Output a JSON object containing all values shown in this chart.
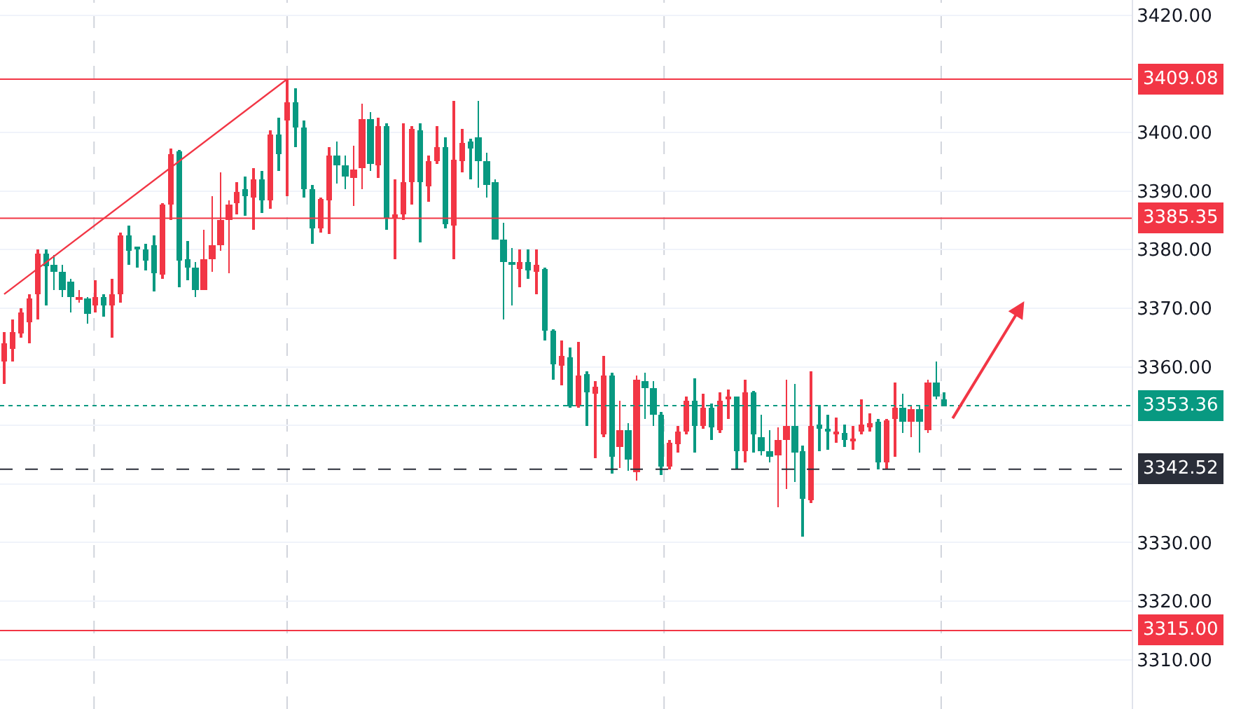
{
  "chart_data": {
    "type": "candlestick",
    "categories": [
      null,
      null,
      null,
      null,
      null,
      null,
      null,
      null,
      null,
      null,
      null,
      null,
      null,
      null,
      null,
      null,
      null,
      null,
      null,
      null,
      null,
      null,
      null,
      null,
      null,
      null,
      null,
      null,
      null,
      null,
      null,
      null,
      null,
      null,
      null,
      null,
      null,
      null,
      null,
      null,
      null,
      null,
      null,
      null,
      null,
      null,
      null,
      null,
      null,
      null,
      null,
      null,
      null,
      null,
      null,
      null,
      null,
      null,
      null,
      null,
      null,
      null,
      null,
      null,
      null,
      null,
      null,
      null,
      null,
      null,
      null,
      null,
      null,
      null,
      null,
      null,
      null,
      null,
      null,
      null,
      null,
      null,
      null,
      null,
      null,
      null,
      null,
      null,
      null,
      null,
      null,
      null,
      null,
      null,
      null,
      null,
      null,
      null,
      null,
      null,
      null,
      null,
      null,
      null,
      null,
      null,
      null,
      null,
      null,
      null,
      null,
      null,
      null,
      null,
      null,
      null,
      null,
      null,
      null,
      null,
      null,
      null,
      null,
      null,
      null,
      null,
      null,
      null,
      null,
      null,
      null,
      null,
      null,
      null,
      null,
      null
    ],
    "ohlc": [
      [
        3361,
        3366,
        3357,
        3364
      ],
      [
        3363,
        3368,
        3361,
        3366
      ],
      [
        3365.7,
        3370,
        3365,
        3369.3
      ],
      [
        3367.6,
        3372.5,
        3364,
        3371.7
      ],
      [
        3372.4,
        3380,
        3368,
        3379.2
      ],
      [
        3379.4,
        3380.1,
        3370.5,
        3377.2
      ],
      [
        3377.5,
        3379,
        3373,
        3376.2
      ],
      [
        3376.2,
        3377.5,
        3371.8,
        3373.2
      ],
      [
        3374.6,
        3375,
        3369.3,
        3371.8
      ],
      [
        3371.5,
        3373,
        3371,
        3372
      ],
      [
        3371.7,
        3372,
        3367.3,
        3369.1
      ],
      [
        3370.5,
        3374.8,
        3369.3,
        3372
      ],
      [
        3372,
        3372.5,
        3368.5,
        3370.5
      ],
      [
        3370.5,
        3375,
        3365,
        3372.4
      ],
      [
        3372.4,
        3383,
        3371,
        3382.5
      ],
      [
        3382.5,
        3384.2,
        3377.3,
        3379.7
      ],
      [
        3380.5,
        3380.6,
        3377,
        3380.1
      ],
      [
        3380.1,
        3381,
        3376.5,
        3378.1
      ],
      [
        3380.7,
        3382.5,
        3372.8,
        3376
      ],
      [
        3375.7,
        3388,
        3375,
        3387.7
      ],
      [
        3387.6,
        3397.2,
        3385,
        3396.3
      ],
      [
        3396.7,
        3397,
        3373.5,
        3378.2
      ],
      [
        3378.4,
        3381.4,
        3374.8,
        3376.9
      ],
      [
        3376.9,
        3378,
        3371.8,
        3373.2
      ],
      [
        3373.2,
        3383.5,
        3373,
        3378.4
      ],
      [
        3378.4,
        3389.2,
        3376.1,
        3380.8
      ],
      [
        3380.8,
        3393.1,
        3379.7,
        3385
      ],
      [
        3385,
        3388.5,
        3376,
        3387.7
      ],
      [
        3387.9,
        3391.5,
        3386,
        3389.9
      ],
      [
        3390.3,
        3392.5,
        3385.7,
        3389.1
      ],
      [
        3388.9,
        3394,
        3383.5,
        3392.1
      ],
      [
        3392.1,
        3393.4,
        3386.2,
        3388.3
      ],
      [
        3388.3,
        3400.3,
        3387,
        3399.7
      ],
      [
        3399.7,
        3402.5,
        3393.5,
        3396.4
      ],
      [
        3402.1,
        3409.08,
        3389.2,
        3405.2
      ],
      [
        3405.2,
        3407.5,
        3397.5,
        3400.8
      ],
      [
        3400.8,
        3402.1,
        3389,
        3390.2
      ],
      [
        3390.2,
        3391,
        3380.9,
        3383.7
      ],
      [
        3383.6,
        3389,
        3383,
        3388.6
      ],
      [
        3388.4,
        3397.5,
        3382.6,
        3396
      ],
      [
        3396,
        3398.5,
        3391.3,
        3394.4
      ],
      [
        3394.4,
        3396,
        3390.2,
        3392.4
      ],
      [
        3392.2,
        3397.8,
        3387.4,
        3393.6
      ],
      [
        3393.8,
        3405,
        3390.3,
        3402.3
      ],
      [
        3402.3,
        3403.5,
        3393.5,
        3394.7
      ],
      [
        3394.4,
        3402.5,
        3392.3,
        3401
      ],
      [
        3401,
        3401.5,
        3383.3,
        3385.4
      ],
      [
        3385.4,
        3392,
        3378.4,
        3386
      ],
      [
        3386.1,
        3401.5,
        3385,
        3391.6
      ],
      [
        3391.6,
        3401,
        3387.6,
        3400.5
      ],
      [
        3400.3,
        3401.5,
        3381.3,
        3391.6
      ],
      [
        3390.9,
        3396,
        3388.2,
        3395.1
      ],
      [
        3395.1,
        3401.1,
        3394.7,
        3397.6
      ],
      [
        3397.5,
        3399.2,
        3383.6,
        3384.4
      ],
      [
        3384,
        3405.3,
        3378.4,
        3395.4
      ],
      [
        3395.1,
        3400.7,
        3393.2,
        3398.3
      ],
      [
        3398.4,
        3399,
        3392,
        3397.2
      ],
      [
        3399.1,
        3405.5,
        3390.5,
        3395.1
      ],
      [
        3395.1,
        3396.5,
        3388.8,
        3391.1
      ],
      [
        3391.6,
        3392,
        3381.6,
        3381.8
      ],
      [
        3381.6,
        3384.5,
        3368,
        3377.8
      ],
      [
        3378,
        3380.3,
        3370.5,
        3377.5
      ],
      [
        3376.6,
        3380.1,
        3373.5,
        3378
      ],
      [
        3378,
        3380,
        3374.9,
        3376.4
      ],
      [
        3376.3,
        3380,
        3372.3,
        3377.4
      ],
      [
        3376.8,
        3377,
        3364.5,
        3366.1
      ],
      [
        3366.2,
        3366.5,
        3357.7,
        3360.5
      ],
      [
        3360.3,
        3364.5,
        3356.9,
        3361.8
      ],
      [
        3361.7,
        3363.3,
        3353,
        3353.3
      ],
      [
        3353.3,
        3364.2,
        3353,
        3358.6
      ],
      [
        3358.8,
        3359.3,
        3350,
        3355.6
      ],
      [
        3355.3,
        3357.5,
        3344.5,
        3356.7
      ],
      [
        3348.5,
        3361.9,
        3348,
        3358.6
      ],
      [
        3358.6,
        3359,
        3341.7,
        3344.7
      ],
      [
        3346.4,
        3354.2,
        3342.8,
        3349.1
      ],
      [
        3349.3,
        3350.3,
        3342.3,
        3344.1
      ],
      [
        3342.1,
        3358.5,
        3340.5,
        3357.7
      ],
      [
        3357.5,
        3359,
        3351,
        3356.3
      ],
      [
        3356.3,
        3357.5,
        3349.8,
        3351.7
      ],
      [
        3351.7,
        3352.3,
        3341.5,
        3343
      ],
      [
        3343,
        3347.5,
        3342.5,
        3347.1
      ],
      [
        3346.9,
        3349.8,
        3345.4,
        3348.9
      ],
      [
        3348.9,
        3354.9,
        3348.5,
        3354.2
      ],
      [
        3354.2,
        3358.1,
        3345.3,
        3349.9
      ],
      [
        3349.9,
        3355.3,
        3349.5,
        3353
      ],
      [
        3353,
        3353.7,
        3347.4,
        3349.6
      ],
      [
        3349.3,
        3355.6,
        3348.7,
        3354.3
      ],
      [
        3354.5,
        3356.1,
        3351,
        3355
      ],
      [
        3354.9,
        3355,
        3342.4,
        3345.5
      ],
      [
        3345.5,
        3357.9,
        3343.8,
        3355.7
      ],
      [
        3355.7,
        3356,
        3345.4,
        3348.4
      ],
      [
        3348.1,
        3351.9,
        3344.9,
        3345.7
      ],
      [
        3345.5,
        3349.2,
        3343.6,
        3344.6
      ],
      [
        3345,
        3349.6,
        3336.1,
        3347.6
      ],
      [
        3347.5,
        3357.9,
        3339.2,
        3349.9
      ],
      [
        3349.9,
        3357,
        3340.4,
        3345.3
      ],
      [
        3345.7,
        3346.5,
        3331.1,
        3337.5
      ],
      [
        3337.2,
        3359.3,
        3336.8,
        3349.9
      ],
      [
        3350.2,
        3353.5,
        3345.7,
        3349.4
      ],
      [
        3349.5,
        3351.8,
        3345.9,
        3348.9
      ],
      [
        3348.6,
        3351.4,
        3347,
        3349
      ],
      [
        3348.7,
        3350.2,
        3346.3,
        3347.5
      ],
      [
        3347.5,
        3349.9,
        3345.8,
        3347.8
      ],
      [
        3348.9,
        3354.5,
        3348.5,
        3350.1
      ],
      [
        3349.9,
        3352,
        3349,
        3350.3
      ],
      [
        3350.7,
        3351,
        3342.5,
        3343.7
      ],
      [
        3343.7,
        3351.2,
        3342.6,
        3350.9
      ],
      [
        3351,
        3357.4,
        3344.6,
        3353.1
      ],
      [
        3353.1,
        3355.5,
        3348.6,
        3350.7
      ],
      [
        3350.7,
        3353.5,
        3348,
        3352.8
      ],
      [
        3352.8,
        3353.2,
        3345.4,
        3350.6
      ],
      [
        3349.1,
        3357.9,
        3348.7,
        3357.4
      ],
      [
        3357.3,
        3360.9,
        3354.5,
        3354.9
      ],
      [
        3354.5,
        3355.7,
        3353.2,
        3353.36
      ],
      null,
      null,
      null,
      null,
      null,
      null,
      null,
      null,
      null,
      null,
      null,
      null,
      null,
      null,
      null,
      null,
      null,
      null,
      null,
      null,
      null,
      null
    ],
    "colors": [
      "#f23645",
      "#f23645",
      "#f23645",
      "#f23645",
      "#f23645",
      "#089981",
      "#089981",
      "#089981",
      "#089981",
      "#f23645",
      "#089981",
      "#f23645",
      "#089981",
      "#f23645",
      "#f23645",
      "#089981",
      "#089981",
      "#089981",
      "#089981",
      "#f23645",
      "#f23645",
      "#089981",
      "#089981",
      "#089981",
      "#f23645",
      "#f23645",
      "#f23645",
      "#f23645",
      "#f23645",
      "#089981",
      "#f23645",
      "#089981",
      "#f23645",
      "#089981",
      "#f23645",
      "#089981",
      "#089981",
      "#089981",
      "#f23645",
      "#f23645",
      "#089981",
      "#089981",
      "#f23645",
      "#f23645",
      "#089981",
      "#f23645",
      "#089981",
      "#f23645",
      "#f23645",
      "#f23645",
      "#089981",
      "#f23645",
      "#f23645",
      "#089981",
      "#f23645",
      "#f23645",
      "#089981",
      "#089981",
      "#089981",
      "#089981",
      "#089981",
      "#089981",
      "#f23645",
      "#089981",
      "#f23645",
      "#089981",
      "#089981",
      "#f23645",
      "#089981",
      "#f23645",
      "#089981",
      "#f23645",
      "#f23645",
      "#089981",
      "#f23645",
      "#089981",
      "#f23645",
      "#089981",
      "#089981",
      "#089981",
      "#f23645",
      "#f23645",
      "#f23645",
      "#089981",
      "#f23645",
      "#089981",
      "#f23645",
      "#f23645",
      "#089981",
      "#f23645",
      "#089981",
      "#089981",
      "#089981",
      "#f23645",
      "#f23645",
      "#089981",
      "#089981",
      "#f23645",
      "#089981",
      "#089981",
      "#f23645",
      "#089981",
      "#f23645",
      "#f23645",
      "#f23645",
      "#089981",
      "#f23645",
      "#f23645",
      "#089981",
      "#f23645",
      "#089981",
      "#f23645",
      "#089981",
      "#089981",
      null,
      null,
      null,
      null,
      null,
      null,
      null,
      null,
      null,
      null,
      null,
      null,
      null,
      null,
      null,
      null,
      null,
      null,
      null,
      null,
      null,
      null
    ],
    "series": [
      {
        "type": "line",
        "values": [
          3372.4,
          null,
          null,
          null,
          null,
          null,
          null,
          null,
          null,
          null,
          null,
          null,
          null,
          null,
          null,
          null,
          null,
          null,
          null,
          null,
          null,
          null,
          null,
          null,
          null,
          null,
          null,
          null,
          null,
          null,
          null,
          null,
          null,
          null,
          3409.08,
          null,
          null,
          null,
          null,
          null,
          null,
          null,
          null,
          null,
          null,
          null,
          null,
          null,
          null,
          null,
          null,
          null,
          null,
          null,
          null,
          null,
          null,
          null,
          null,
          null,
          null,
          null,
          null,
          null,
          null,
          null,
          null,
          null,
          null,
          null,
          null,
          null,
          null,
          null,
          null,
          null,
          null,
          null,
          null,
          null,
          null,
          null,
          null,
          null,
          null,
          null,
          null,
          null,
          null,
          null,
          null,
          null,
          null,
          null,
          null,
          null,
          null,
          null,
          null,
          null,
          null,
          null,
          null,
          null,
          null,
          null,
          null,
          null,
          null,
          null,
          null,
          null,
          null,
          null,
          null,
          null,
          null,
          null,
          null,
          null,
          null,
          null,
          null,
          null,
          null,
          null,
          null,
          null,
          null,
          null,
          null,
          null,
          null,
          null,
          null,
          null
        ],
        "color": "#f23645"
      }
    ],
    "ylim": [
      3301.6,
      3422.6
    ],
    "yticks": [
      {
        "value": 3310,
        "label": "3310.00"
      },
      {
        "value": 3320,
        "label": "3320.00"
      },
      {
        "value": 3330,
        "label": "3330.00"
      },
      {
        "value": 3340,
        "label": null
      },
      {
        "value": 3350,
        "label": null
      },
      {
        "value": 3360,
        "label": "3360.00"
      },
      {
        "value": 3370,
        "label": "3370.00"
      },
      {
        "value": 3380,
        "label": "3380.00"
      },
      {
        "value": 3390,
        "label": "3390.00"
      },
      {
        "value": 3400,
        "label": "3400.00"
      },
      {
        "value": 3420,
        "label": "3420.00"
      }
    ],
    "ref_lines": [
      {
        "axis": "y",
        "value": 3409.08,
        "label": "3409.08",
        "color": "#f23645",
        "line_style": "solid"
      },
      {
        "axis": "y",
        "value": 3385.35,
        "label": "3385.35",
        "color": "#f23645",
        "line_style": "solid"
      },
      {
        "axis": "y",
        "value": 3315.0,
        "label": "3315.00",
        "color": "#f23645",
        "line_style": "solid"
      },
      {
        "axis": "y",
        "value": 3353.36,
        "label": "3353.36",
        "color": "#089981",
        "line_style": "dotted"
      },
      {
        "axis": "y",
        "value": 3342.52,
        "label": "3342.52",
        "color": "#2a2e39",
        "line_style": "dashed"
      }
    ],
    "grid": "y",
    "tick_labels": "y"
  }
}
